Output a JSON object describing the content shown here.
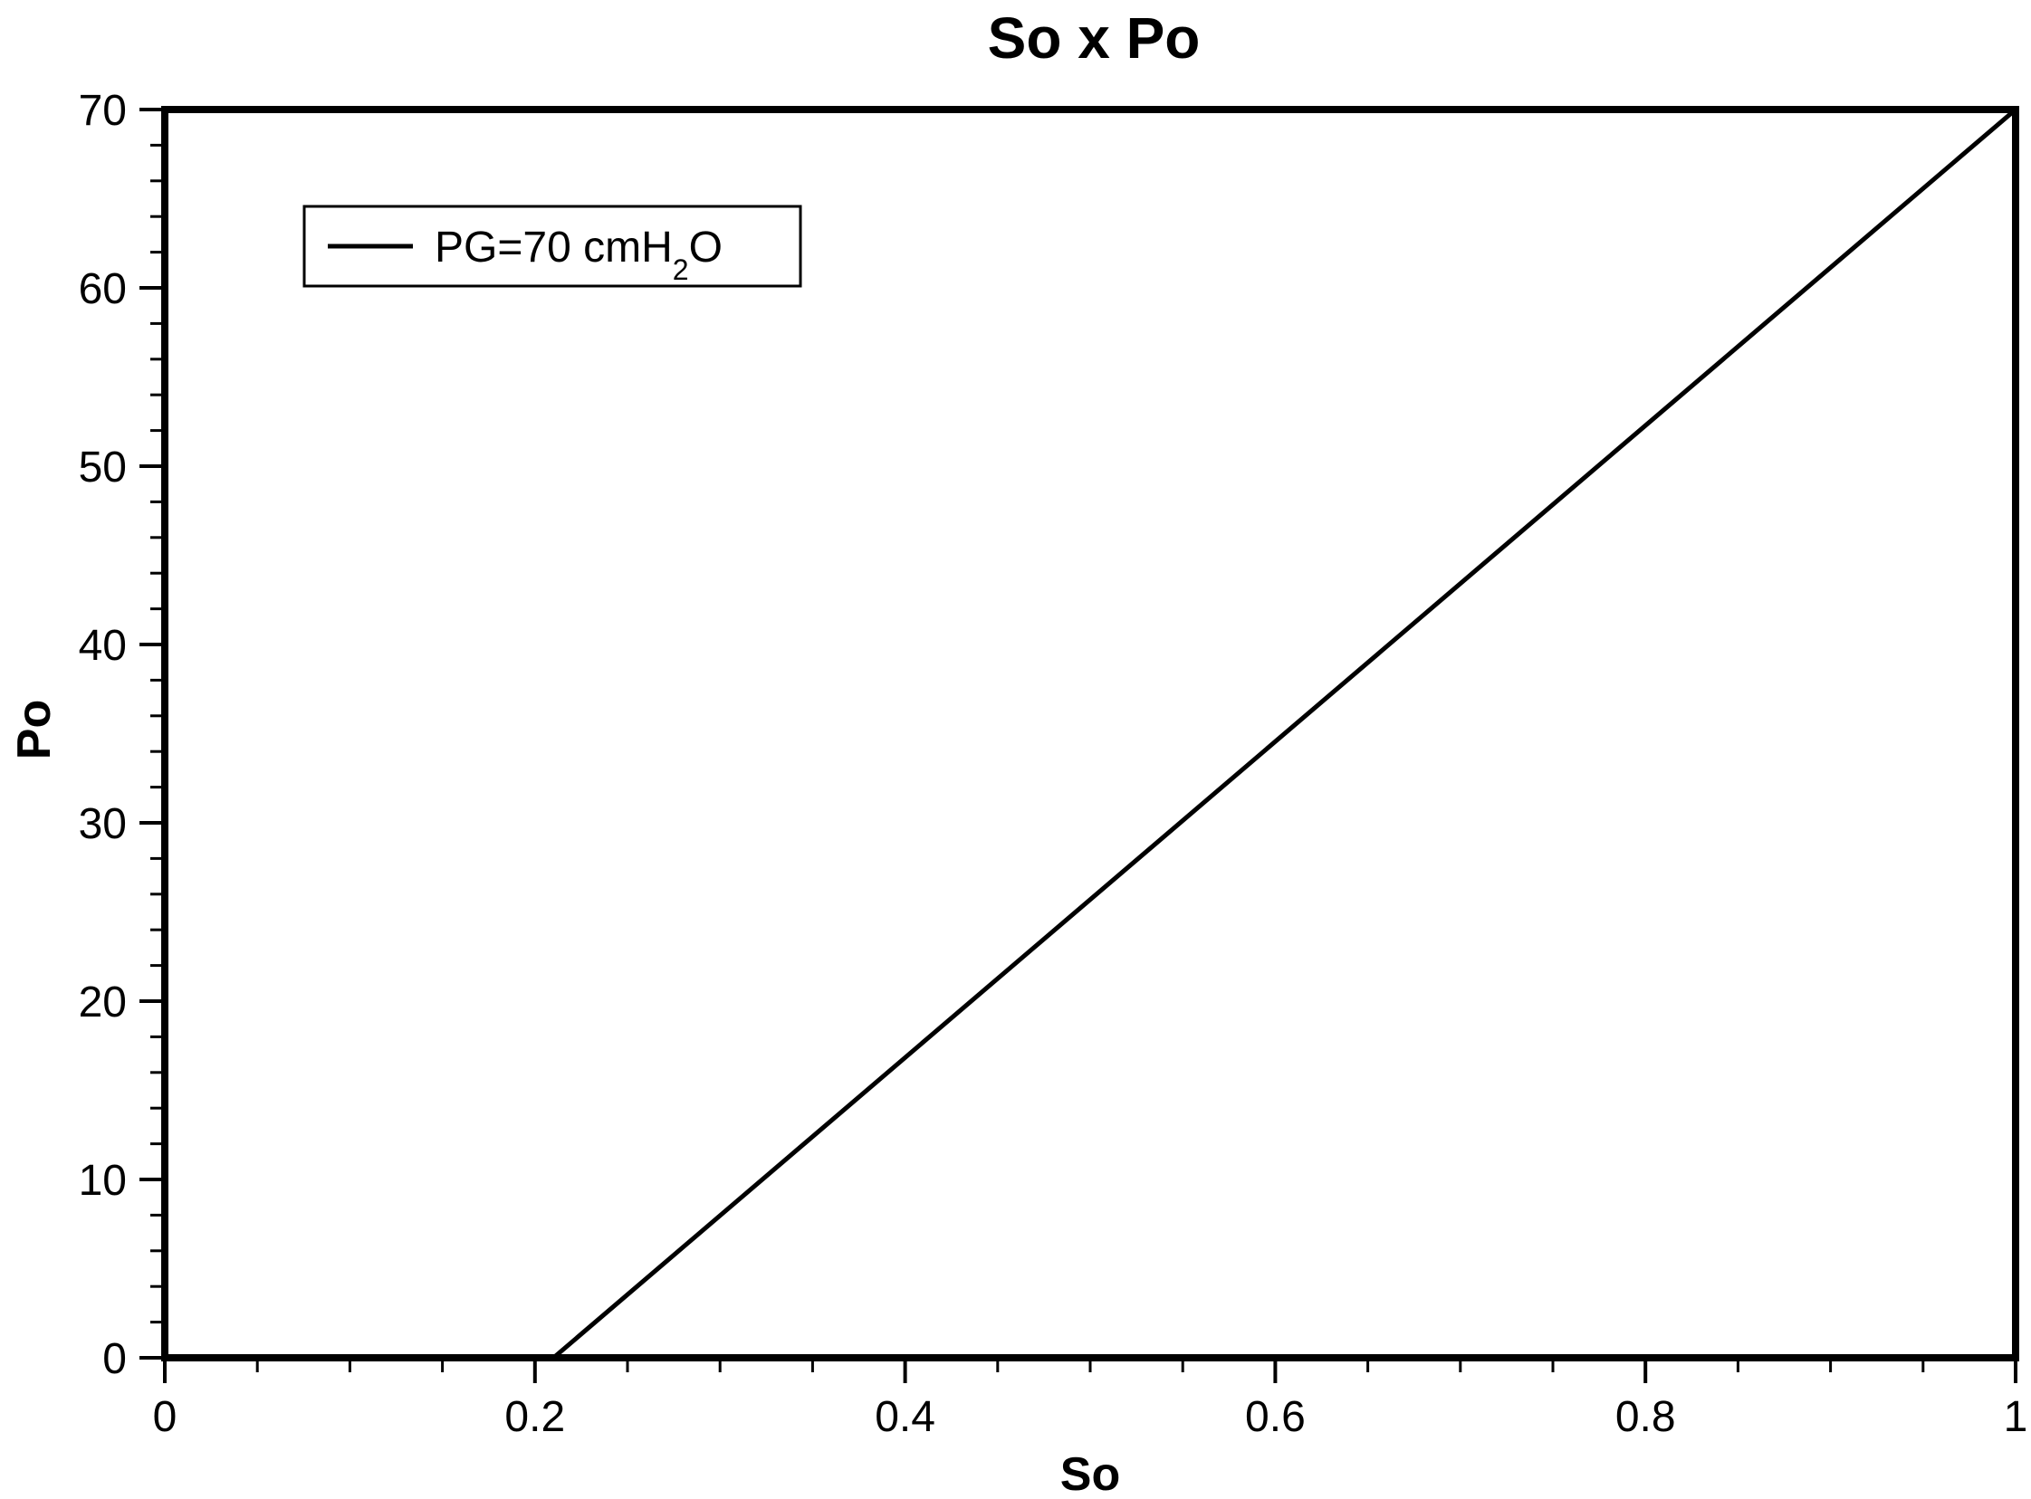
{
  "chart_data": {
    "type": "line",
    "title": "So x Po",
    "xlabel": "So",
    "ylabel": "Po",
    "xlim": [
      0,
      1
    ],
    "ylim": [
      0,
      70
    ],
    "x_major_ticks": [
      0,
      0.2,
      0.4,
      0.6,
      0.8,
      1
    ],
    "x_tick_labels": [
      "0",
      "0.2",
      "0.4",
      "0.6",
      "0.8",
      "1"
    ],
    "x_minor_step": 0.05,
    "y_major_ticks": [
      0,
      10,
      20,
      30,
      40,
      50,
      60,
      70
    ],
    "y_tick_labels": [
      "0",
      "10",
      "20",
      "30",
      "40",
      "50",
      "60",
      "70"
    ],
    "y_minor_step": 2,
    "grid": false,
    "legend_position": "top-left",
    "series": [
      {
        "name": "PG=70 cmH2O",
        "legend_parts": {
          "main": "PG=70 cmH",
          "sub": "2",
          "tail": "O"
        },
        "color": "#000000",
        "x": [
          0.21,
          1.0
        ],
        "y": [
          0,
          70
        ]
      }
    ]
  }
}
